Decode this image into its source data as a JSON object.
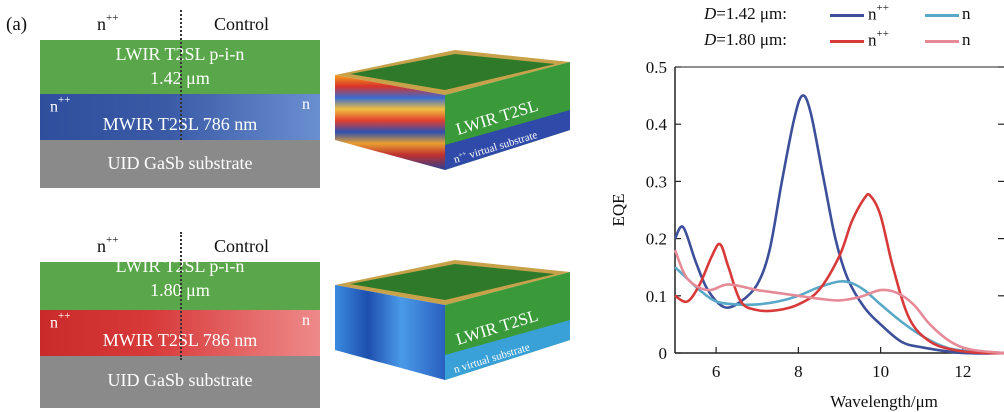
{
  "panel_label": "(a)",
  "diagram_top": {
    "left_label": "n",
    "left_label_sup": "++",
    "right_label": "Control",
    "lwir_line1": "LWIR T2SL p-i-n",
    "lwir_line2": "1.42 μm",
    "mwir_left": "n",
    "mwir_left_sup": "++",
    "mwir_right": "n",
    "mwir_text": "MWIR T2SL 786 nm",
    "substrate_text": "UID GaSb substrate",
    "block3d_lwir": "LWIR T2SL",
    "block3d_sub": "n",
    "block3d_sub_sup": "++",
    "block3d_sub_rest": " virtual substrate"
  },
  "diagram_bottom": {
    "left_label": "n",
    "left_label_sup": "++",
    "right_label": "Control",
    "lwir_line1": "LWIR T2SL p-i-n",
    "lwir_line2": "1.80 μm",
    "mwir_left": "n",
    "mwir_left_sup": "++",
    "mwir_right": "n",
    "mwir_text": "MWIR T2SL 786 nm",
    "substrate_text": "UID GaSb substrate",
    "block3d_lwir": "LWIR T2SL",
    "block3d_sub": "n virtual substrate"
  },
  "legend": {
    "row1_prefix": "D",
    "row1_value": "=1.42 μm:",
    "row2_prefix": "D",
    "row2_value": "=1.80 μm:",
    "npp": "n",
    "npp_sup": "++",
    "n": "n"
  },
  "colors": {
    "lwir": "#5aa64a",
    "mwir_blue": "#3a5aa6",
    "mwir_red": "#d23a3a",
    "substrate": "#8a8a8a",
    "s142_npp": "#3d4f9a",
    "s142_n": "#5aa8c8",
    "s180_npp": "#d83a3a",
    "s180_n": "#e68a98"
  },
  "chart_data": {
    "type": "line",
    "xlabel": "Wavelength/μm",
    "ylabel": "EQE",
    "xlim": [
      5,
      13
    ],
    "ylim": [
      0,
      0.5
    ],
    "x_ticks": [
      "6",
      "8",
      "10",
      "12"
    ],
    "x_tick_values": [
      6,
      8,
      10,
      12
    ],
    "y_ticks": [
      "0",
      "0.1",
      "0.2",
      "0.3",
      "0.4",
      "0.5"
    ],
    "y_tick_values": [
      0,
      0.1,
      0.2,
      0.3,
      0.4,
      0.5
    ],
    "series": [
      {
        "name": "D=1.42 μm n++",
        "color_key": "s142_npp",
        "x": [
          5.0,
          5.2,
          5.5,
          5.8,
          6.2,
          6.6,
          7.0,
          7.3,
          7.6,
          7.9,
          8.1,
          8.3,
          8.6,
          8.9,
          9.2,
          9.6,
          10.0,
          10.5,
          11.0,
          12.0,
          13.0
        ],
        "y": [
          0.2,
          0.22,
          0.16,
          0.11,
          0.08,
          0.09,
          0.12,
          0.18,
          0.3,
          0.41,
          0.45,
          0.42,
          0.31,
          0.2,
          0.13,
          0.08,
          0.05,
          0.02,
          0.01,
          0.0,
          0.0
        ]
      },
      {
        "name": "D=1.42 μm n",
        "color_key": "s142_n",
        "x": [
          5.0,
          5.3,
          5.6,
          6.0,
          6.5,
          7.0,
          7.5,
          8.0,
          8.5,
          9.0,
          9.3,
          9.6,
          10.0,
          10.5,
          11.0,
          11.5,
          12.0,
          13.0
        ],
        "y": [
          0.15,
          0.13,
          0.11,
          0.09,
          0.085,
          0.085,
          0.09,
          0.1,
          0.115,
          0.125,
          0.122,
          0.11,
          0.085,
          0.055,
          0.03,
          0.012,
          0.004,
          0.0
        ]
      },
      {
        "name": "D=1.80 μm n++",
        "color_key": "s180_npp",
        "x": [
          5.0,
          5.3,
          5.6,
          5.9,
          6.1,
          6.3,
          6.6,
          7.0,
          7.5,
          8.0,
          8.5,
          9.0,
          9.3,
          9.6,
          9.75,
          10.0,
          10.3,
          10.7,
          11.2,
          11.8,
          12.5,
          13.0
        ],
        "y": [
          0.1,
          0.09,
          0.12,
          0.17,
          0.19,
          0.15,
          0.09,
          0.075,
          0.075,
          0.085,
          0.11,
          0.17,
          0.23,
          0.27,
          0.275,
          0.24,
          0.15,
          0.06,
          0.02,
          0.005,
          0.0,
          0.0
        ]
      },
      {
        "name": "D=1.80 μm n",
        "color_key": "s180_n",
        "x": [
          5.0,
          5.3,
          5.8,
          6.3,
          7.0,
          7.5,
          8.0,
          8.5,
          9.0,
          9.5,
          10.0,
          10.4,
          10.8,
          11.2,
          11.7,
          12.2,
          13.0
        ],
        "y": [
          0.18,
          0.13,
          0.11,
          0.12,
          0.11,
          0.105,
          0.1,
          0.095,
          0.092,
          0.098,
          0.11,
          0.105,
          0.085,
          0.05,
          0.02,
          0.006,
          0.0
        ]
      }
    ]
  }
}
